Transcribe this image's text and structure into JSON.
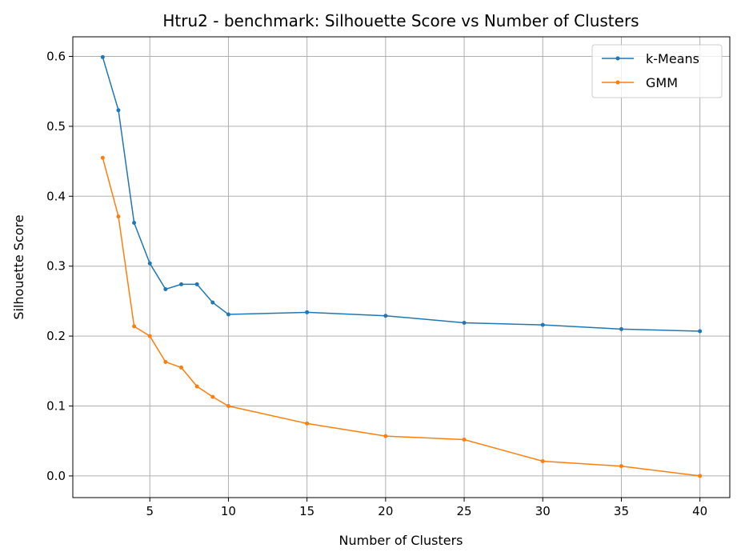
{
  "chart_data": {
    "type": "line",
    "title": "Htru2 - benchmark: Silhouette Score vs Number of Clusters",
    "xlabel": "Number of Clusters",
    "ylabel": "Silhouette Score",
    "x": [
      2,
      3,
      4,
      5,
      6,
      7,
      8,
      9,
      10,
      15,
      20,
      25,
      30,
      35,
      40
    ],
    "xlim": [
      0.1,
      41.9
    ],
    "ylim": [
      -0.031,
      0.628
    ],
    "xticks": [
      5,
      10,
      15,
      20,
      25,
      30,
      35,
      40
    ],
    "yticks": [
      0.0,
      0.1,
      0.2,
      0.3,
      0.4,
      0.5,
      0.6
    ],
    "grid": true,
    "legend_position": "top-right",
    "series": [
      {
        "name": "k-Means",
        "color": "#1f77b4",
        "values": [
          0.599,
          0.523,
          0.362,
          0.304,
          0.267,
          0.274,
          0.274,
          0.248,
          0.231,
          0.234,
          0.229,
          0.219,
          0.216,
          0.21,
          0.207
        ]
      },
      {
        "name": "GMM",
        "color": "#ff7f0e",
        "values": [
          0.455,
          0.371,
          0.214,
          0.2,
          0.163,
          0.155,
          0.128,
          0.113,
          0.1,
          0.075,
          0.057,
          0.052,
          0.021,
          0.014,
          0.0
        ]
      }
    ]
  }
}
